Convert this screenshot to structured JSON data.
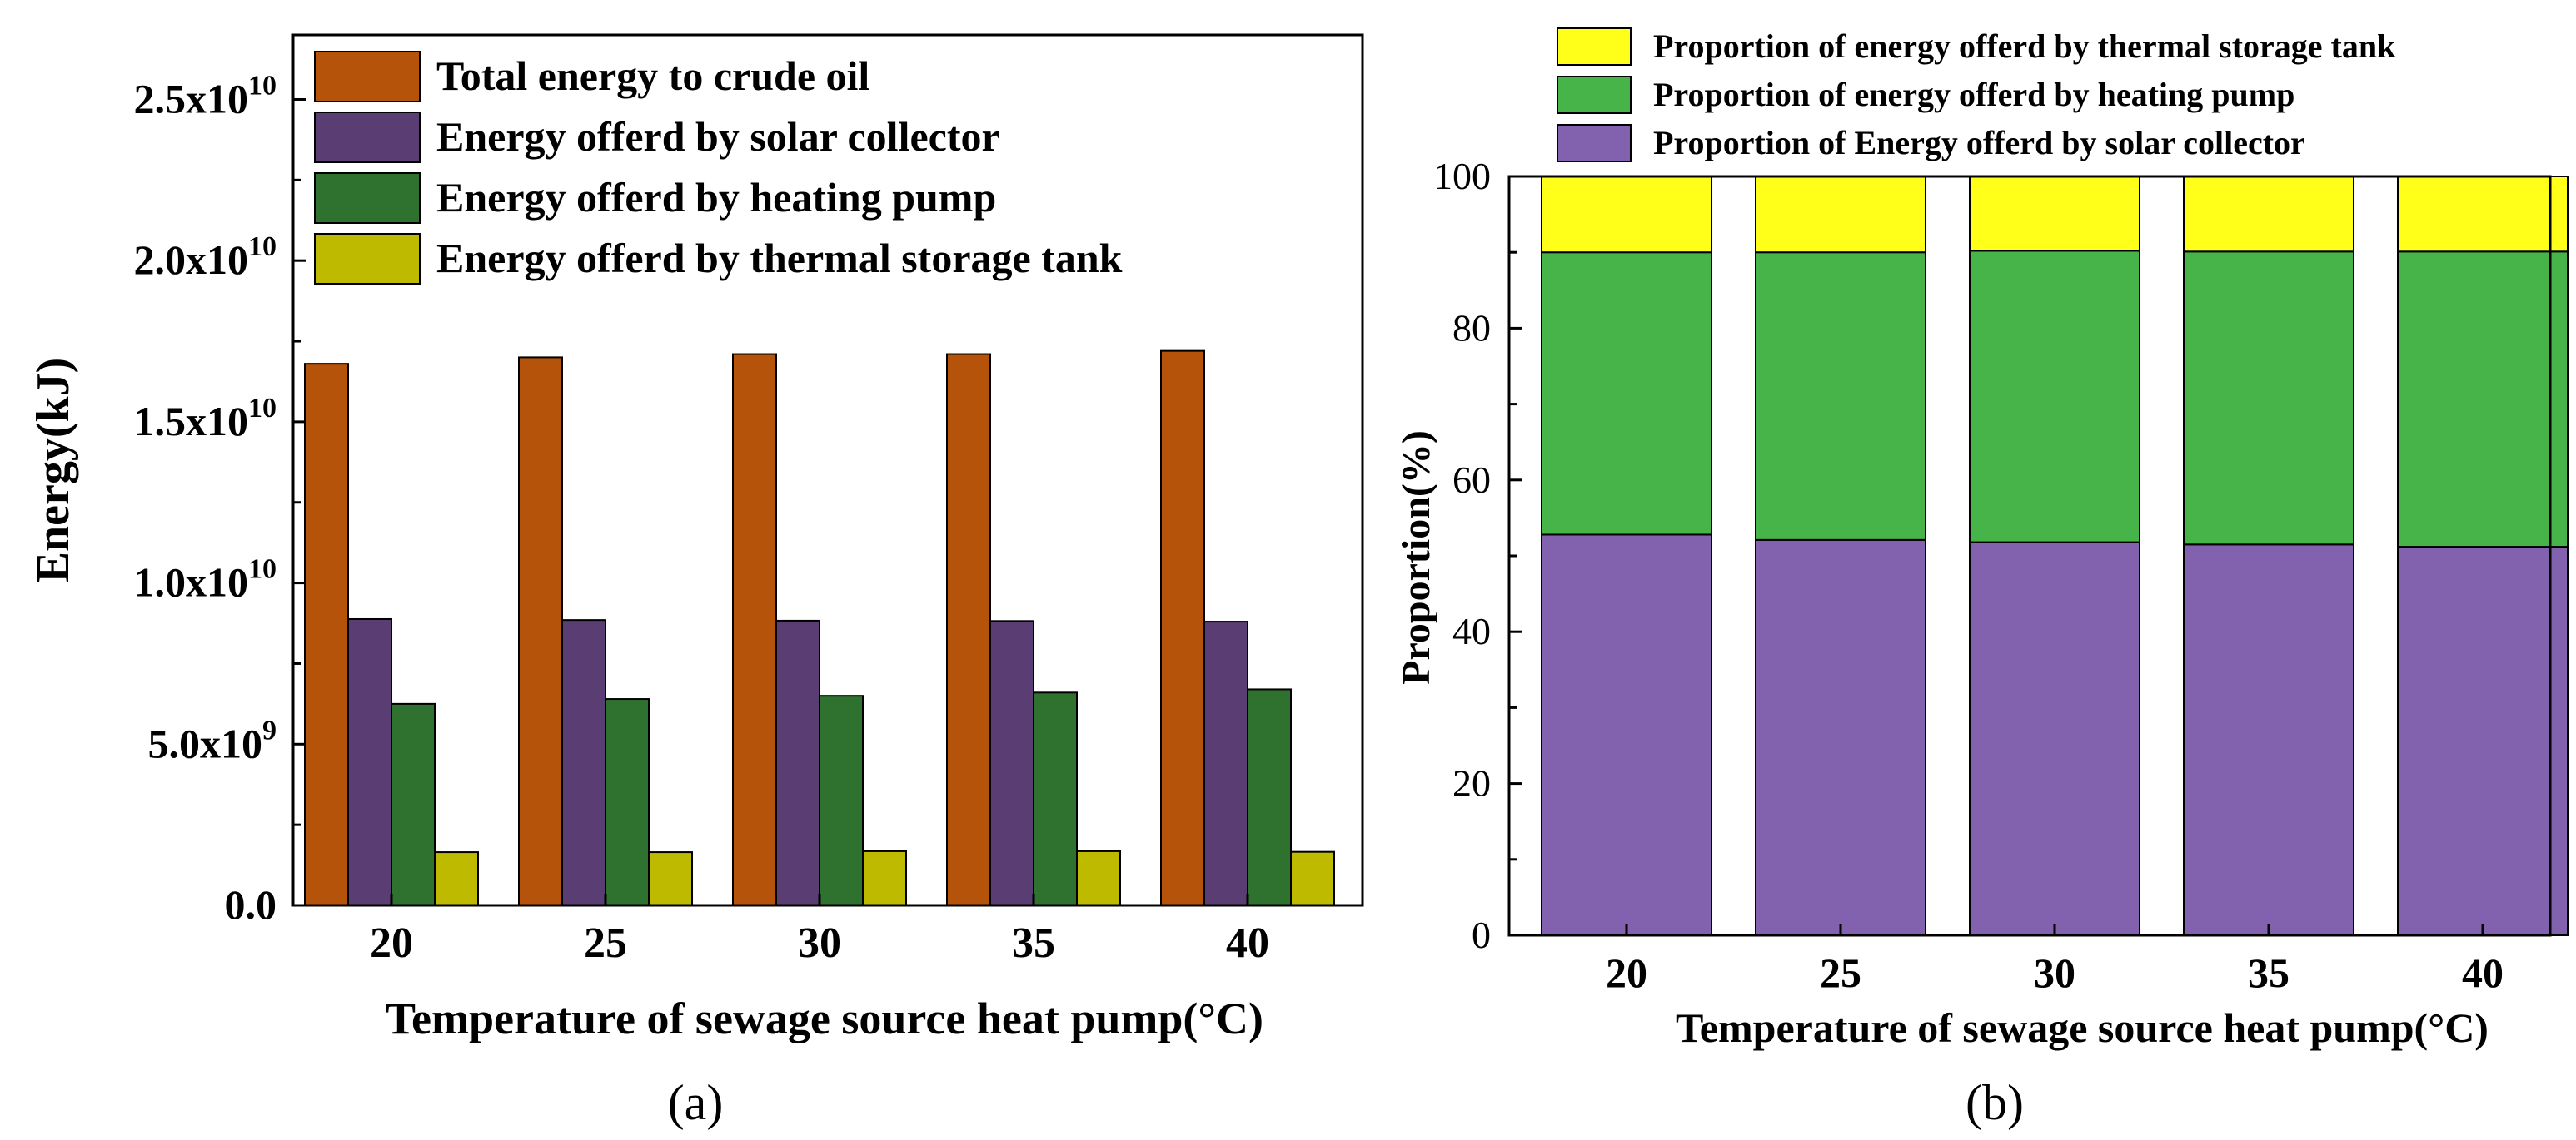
{
  "chart_data": [
    {
      "type": "bar",
      "panel_label": "(a)",
      "title": "",
      "xlabel": "Temperature of sewage source heat pump(°C)",
      "ylabel": "Energy(kJ)",
      "categories": [
        "20",
        "25",
        "30",
        "35",
        "40"
      ],
      "ylim": [
        0,
        27000000000
      ],
      "ytick_values": [
        0,
        5000000000,
        10000000000,
        15000000000,
        20000000000,
        25000000000
      ],
      "ytick_labels": [
        {
          "mantissa": "0.0",
          "exp": ""
        },
        {
          "mantissa": "5.0x10",
          "exp": "9"
        },
        {
          "mantissa": "1.0x10",
          "exp": "10"
        },
        {
          "mantissa": "1.5x10",
          "exp": "10"
        },
        {
          "mantissa": "2.0x10",
          "exp": "10"
        },
        {
          "mantissa": "2.5x10",
          "exp": "10"
        }
      ],
      "legend_position": "top",
      "series": [
        {
          "name": "Total energy to crude oil",
          "color": "#B5530A",
          "values": [
            16800000000,
            17000000000,
            17100000000,
            17100000000,
            17200000000
          ]
        },
        {
          "name": "Energy offerd by solar collector",
          "color": "#5A3D72",
          "values": [
            8880000000,
            8850000000,
            8830000000,
            8820000000,
            8800000000
          ]
        },
        {
          "name": "Energy offerd by heating pump",
          "color": "#2F7230",
          "values": [
            6250000000,
            6400000000,
            6500000000,
            6600000000,
            6700000000
          ]
        },
        {
          "name": "Energy offerd by thermal storage tank",
          "color": "#BDBA00",
          "values": [
            1650000000,
            1650000000,
            1680000000,
            1680000000,
            1660000000
          ]
        }
      ]
    },
    {
      "type": "bar",
      "stacked": true,
      "panel_label": "(b)",
      "title": "",
      "xlabel": "Temperature of sewage source heat pump(°C)",
      "ylabel": "Proportion(%)",
      "categories": [
        "20",
        "25",
        "30",
        "35",
        "40"
      ],
      "ylim": [
        0,
        100
      ],
      "ytick_values": [
        0,
        20,
        40,
        60,
        80,
        100
      ],
      "legend_position": "top",
      "series": [
        {
          "name": "Proportion of Energy offerd by solar collector",
          "color": "#8262AE",
          "values": [
            52.8,
            52.1,
            51.8,
            51.5,
            51.2
          ]
        },
        {
          "name": "Proportion of energy offerd by heating pump",
          "color": "#47B44A",
          "values": [
            37.2,
            37.9,
            38.4,
            38.6,
            38.9
          ]
        },
        {
          "name": "Proportion of energy offerd by thermal storage tank",
          "color": "#FFFF1A",
          "values": [
            10.0,
            10.0,
            9.8,
            9.9,
            9.9
          ]
        }
      ],
      "legend_order": [
        2,
        1,
        0
      ]
    }
  ]
}
